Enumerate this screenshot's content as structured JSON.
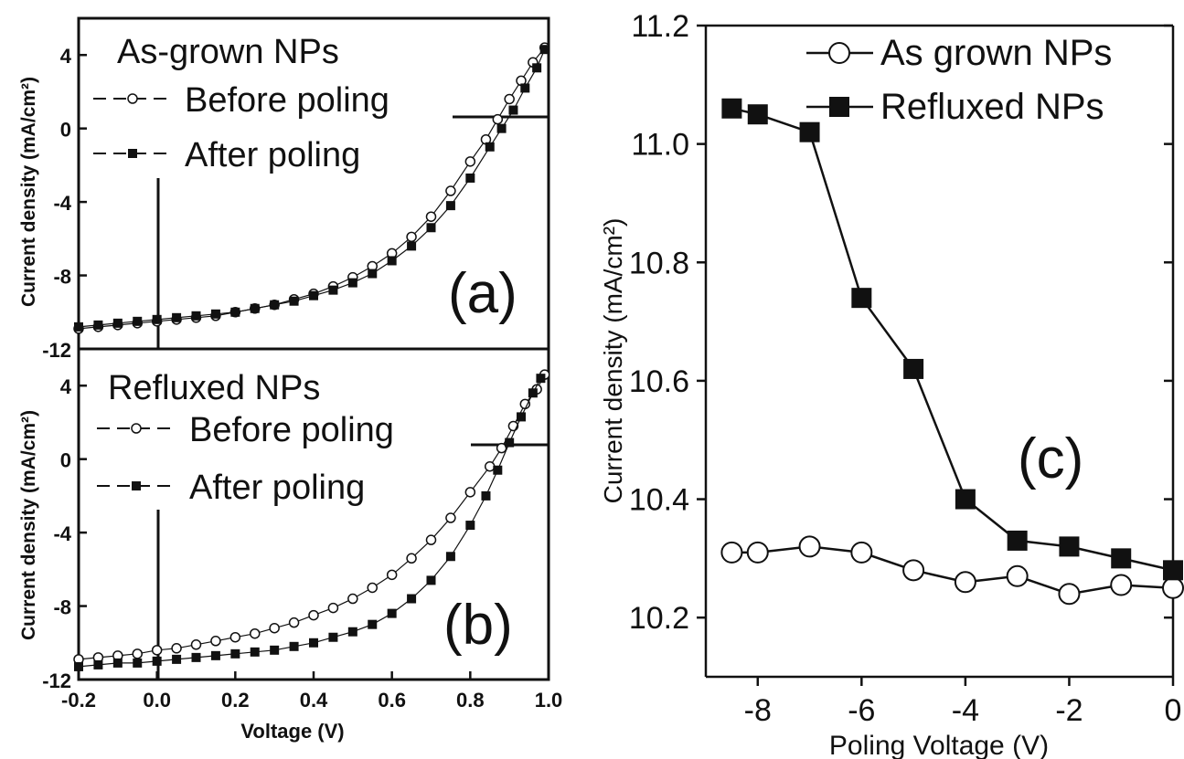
{
  "chart_data": [
    {
      "panel": "a",
      "type": "scatter",
      "panel_label": "(a)",
      "legend_title": "As-grown NPs",
      "xlabel": "",
      "ylabel": "Current density (mA/cm²)",
      "xlim": [
        -0.2,
        1.0
      ],
      "ylim": [
        -12,
        6
      ],
      "x_ticks": [],
      "y_ticks": [
        "4",
        "0",
        "-4",
        "-8",
        "-12"
      ],
      "series": [
        {
          "name": "Before poling",
          "marker": "open-circle",
          "x": [
            -0.2,
            -0.15,
            -0.1,
            -0.05,
            0.0,
            0.05,
            0.1,
            0.15,
            0.2,
            0.25,
            0.3,
            0.35,
            0.4,
            0.45,
            0.5,
            0.55,
            0.6,
            0.65,
            0.7,
            0.75,
            0.8,
            0.84,
            0.87,
            0.9,
            0.93,
            0.96,
            0.99
          ],
          "y": [
            -10.9,
            -10.8,
            -10.7,
            -10.6,
            -10.5,
            -10.4,
            -10.3,
            -10.2,
            -10.0,
            -9.8,
            -9.6,
            -9.3,
            -9.0,
            -8.6,
            -8.1,
            -7.5,
            -6.8,
            -5.9,
            -4.8,
            -3.4,
            -1.8,
            -0.6,
            0.5,
            1.6,
            2.6,
            3.6,
            4.4
          ]
        },
        {
          "name": "After poling",
          "marker": "filled-square",
          "x": [
            -0.2,
            -0.15,
            -0.1,
            -0.05,
            0.0,
            0.05,
            0.1,
            0.15,
            0.2,
            0.25,
            0.3,
            0.35,
            0.4,
            0.45,
            0.5,
            0.55,
            0.6,
            0.65,
            0.7,
            0.75,
            0.8,
            0.85,
            0.88,
            0.91,
            0.94,
            0.97,
            0.99
          ],
          "y": [
            -10.8,
            -10.7,
            -10.6,
            -10.5,
            -10.4,
            -10.3,
            -10.2,
            -10.1,
            -10.0,
            -9.8,
            -9.6,
            -9.4,
            -9.1,
            -8.8,
            -8.4,
            -7.9,
            -7.2,
            -6.4,
            -5.4,
            -4.2,
            -2.7,
            -1.0,
            0.0,
            1.0,
            2.2,
            3.3,
            4.3
          ]
        }
      ]
    },
    {
      "panel": "b",
      "type": "scatter",
      "panel_label": "(b)",
      "legend_title": "Refluxed NPs",
      "xlabel": "Voltage (V)",
      "ylabel": "Current density (mA/cm²)",
      "xlim": [
        -0.2,
        1.0
      ],
      "ylim": [
        -12,
        6
      ],
      "x_ticks": [
        "-0.2",
        "0.0",
        "0.2",
        "0.4",
        "0.6",
        "0.8",
        "1.0"
      ],
      "y_ticks": [
        "4",
        "0",
        "-4",
        "-8",
        "-12"
      ],
      "series": [
        {
          "name": "Before poling",
          "marker": "open-circle",
          "x": [
            -0.2,
            -0.15,
            -0.1,
            -0.05,
            0.0,
            0.05,
            0.1,
            0.15,
            0.2,
            0.25,
            0.3,
            0.35,
            0.4,
            0.45,
            0.5,
            0.55,
            0.6,
            0.65,
            0.7,
            0.75,
            0.8,
            0.85,
            0.88,
            0.91,
            0.94,
            0.97,
            0.99
          ],
          "y": [
            -10.9,
            -10.8,
            -10.7,
            -10.6,
            -10.4,
            -10.3,
            -10.1,
            -9.9,
            -9.7,
            -9.5,
            -9.2,
            -8.9,
            -8.5,
            -8.1,
            -7.6,
            -7.0,
            -6.3,
            -5.4,
            -4.4,
            -3.2,
            -1.8,
            -0.4,
            0.6,
            1.8,
            3.0,
            3.8,
            4.6
          ]
        },
        {
          "name": "After poling",
          "marker": "filled-square",
          "x": [
            -0.2,
            -0.15,
            -0.1,
            -0.05,
            0.0,
            0.05,
            0.1,
            0.15,
            0.2,
            0.25,
            0.3,
            0.35,
            0.4,
            0.45,
            0.5,
            0.55,
            0.6,
            0.65,
            0.7,
            0.75,
            0.8,
            0.84,
            0.87,
            0.9,
            0.93,
            0.96,
            0.98
          ],
          "y": [
            -11.3,
            -11.2,
            -11.1,
            -11.1,
            -11.0,
            -10.9,
            -10.8,
            -10.7,
            -10.6,
            -10.5,
            -10.4,
            -10.2,
            -10.0,
            -9.7,
            -9.4,
            -9.0,
            -8.4,
            -7.6,
            -6.6,
            -5.3,
            -3.6,
            -2.0,
            -0.6,
            0.9,
            2.3,
            3.6,
            4.4
          ]
        }
      ]
    },
    {
      "panel": "c",
      "type": "line",
      "panel_label": "(c)",
      "xlabel": "Poling Voltage (V)",
      "ylabel": "Current density (mA/cm²)",
      "xlim": [
        -9,
        0
      ],
      "ylim": [
        10.1,
        11.2
      ],
      "x_ticks": [
        "-8",
        "-6",
        "-4",
        "-2",
        "0"
      ],
      "y_ticks": [
        "11.2",
        "11.0",
        "10.8",
        "10.6",
        "10.4",
        "10.2"
      ],
      "legend_position": "top-right",
      "series": [
        {
          "name": "As grown NPs",
          "marker": "open-circle",
          "x": [
            -8.5,
            -8,
            -7,
            -6,
            -5,
            -4,
            -3,
            -2,
            -1,
            0
          ],
          "y": [
            10.31,
            10.31,
            10.32,
            10.31,
            10.28,
            10.26,
            10.27,
            10.24,
            10.255,
            10.25
          ]
        },
        {
          "name": "Refluxed NPs",
          "marker": "filled-square",
          "x": [
            -8.5,
            -8,
            -7,
            -6,
            -5,
            -4,
            -3,
            -2,
            -1,
            0
          ],
          "y": [
            11.06,
            11.05,
            11.02,
            10.74,
            10.62,
            10.4,
            10.33,
            10.32,
            10.3,
            10.28
          ]
        }
      ]
    }
  ]
}
